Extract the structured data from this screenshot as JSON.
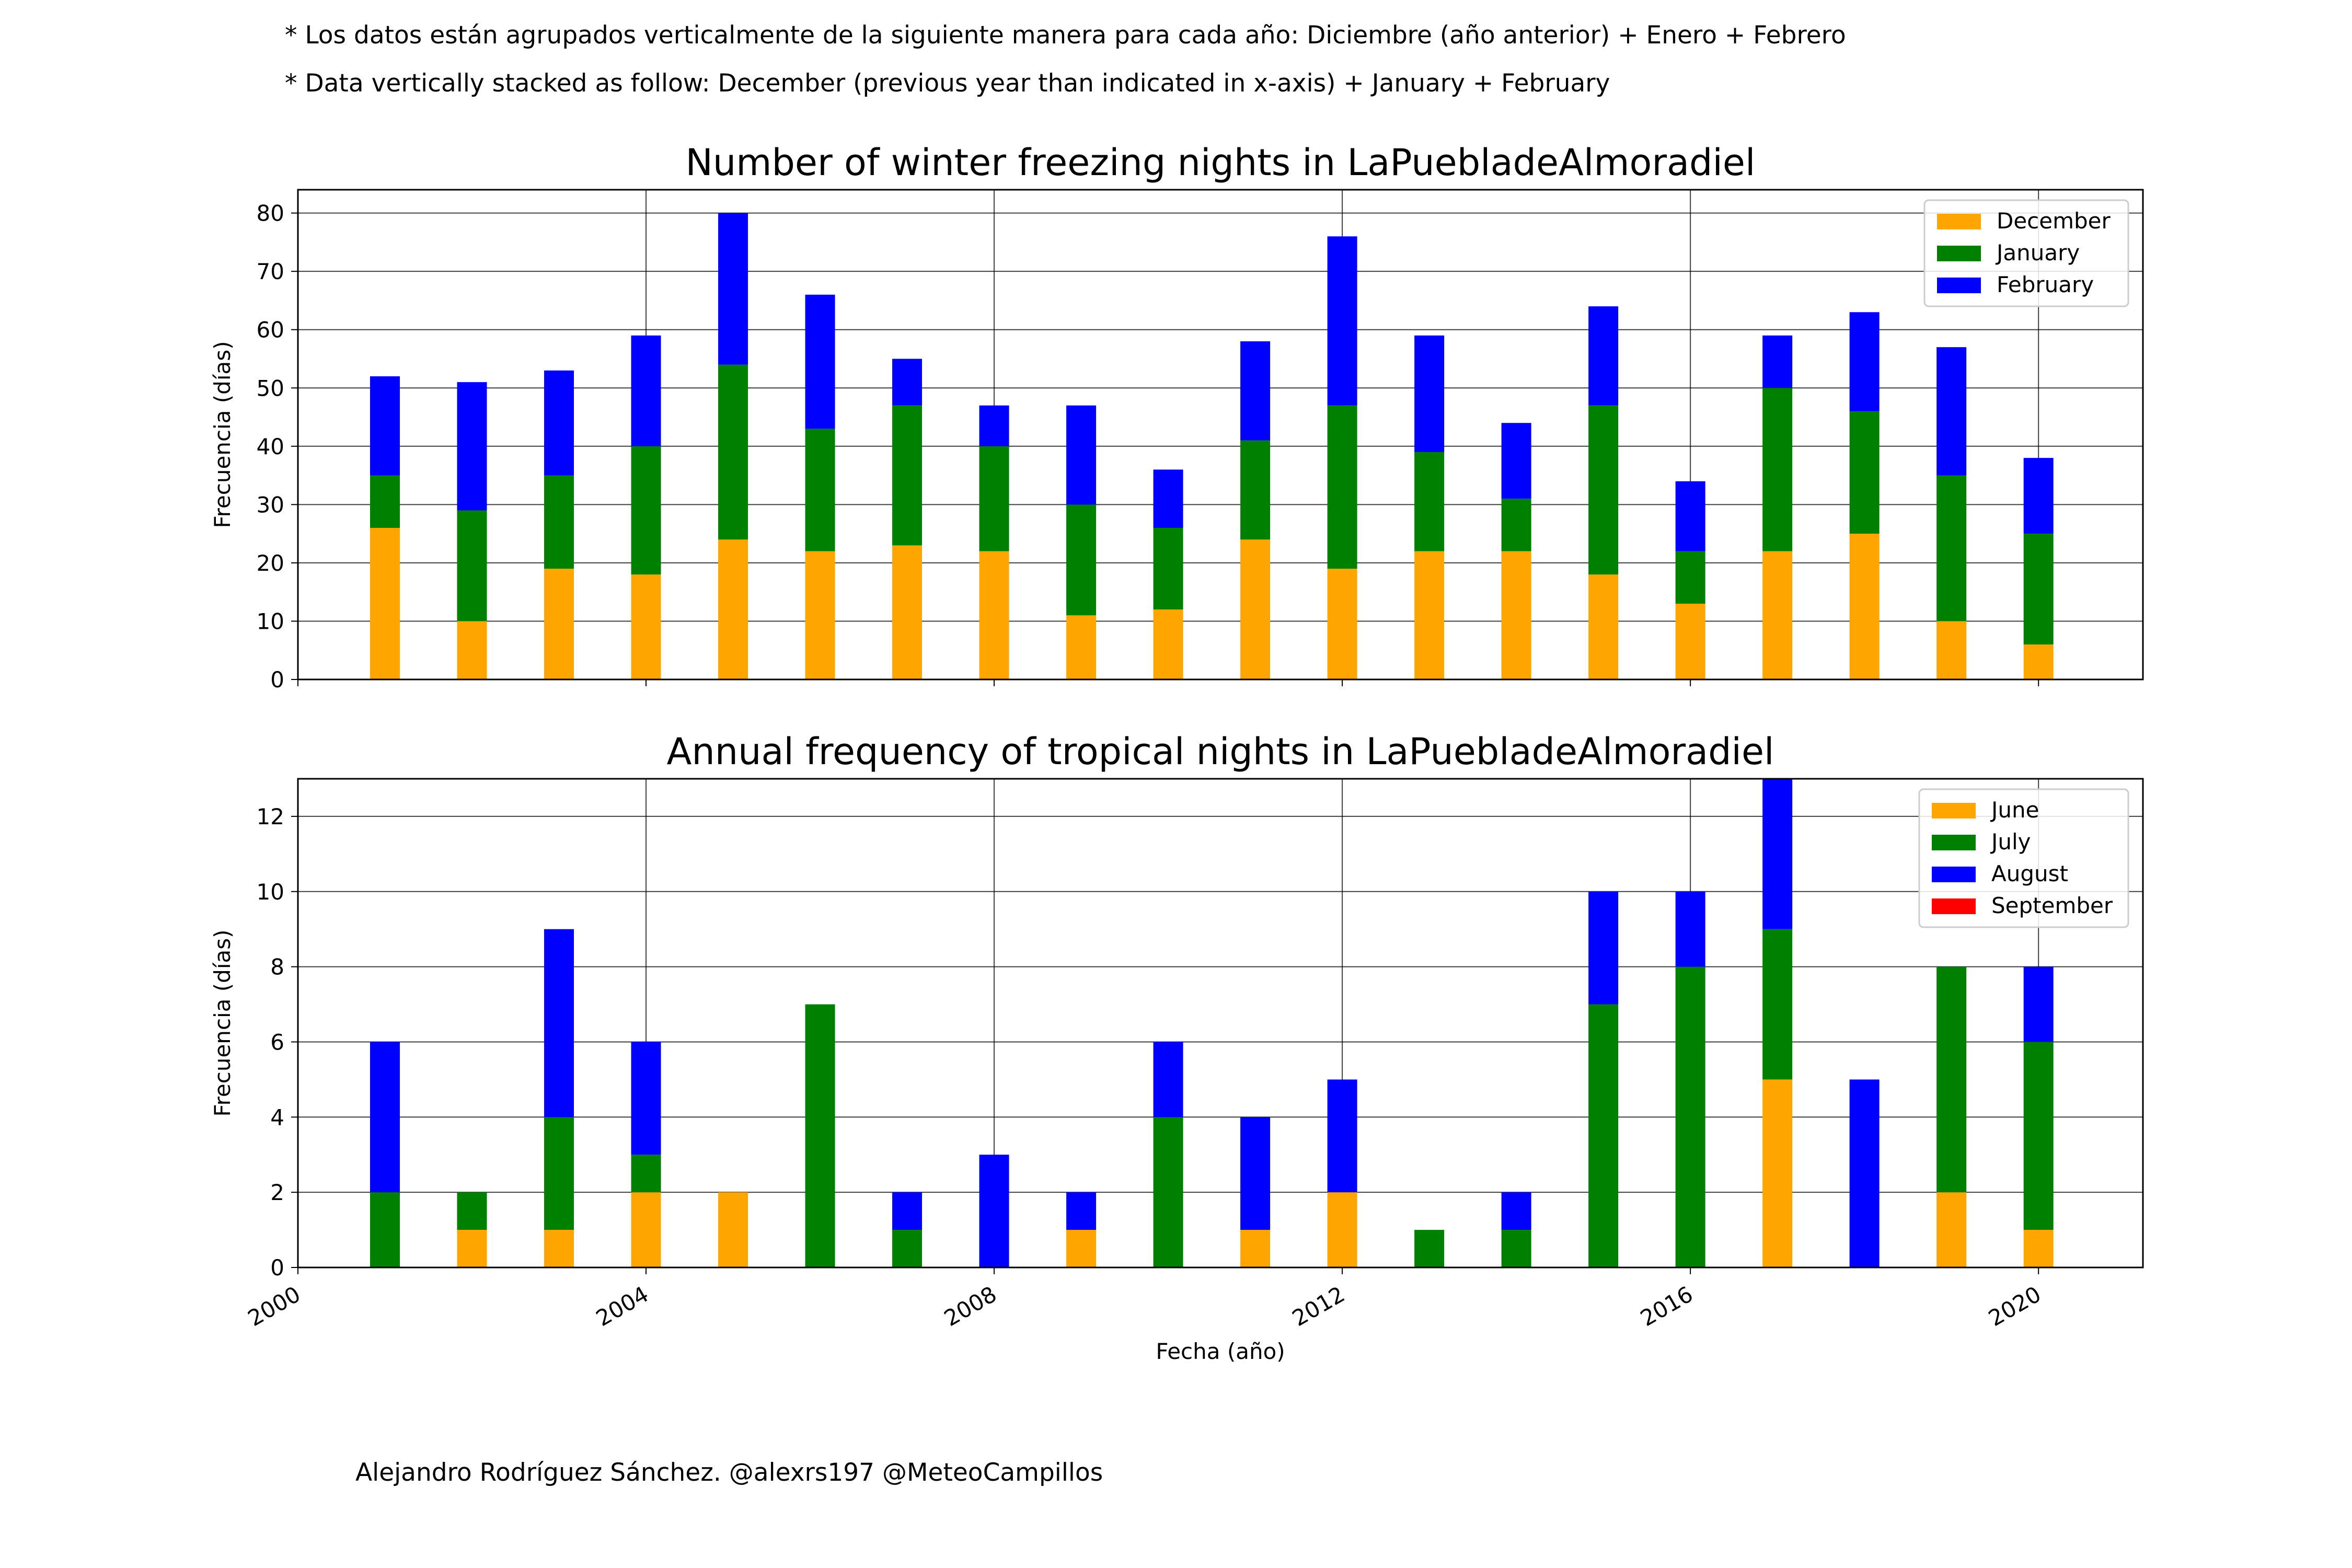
{
  "notes": {
    "spanish": "* Los datos están agrupados verticalmente de la siguiente manera para cada año: Diciembre (año anterior) + Enero  + Febrero",
    "english": "* Data vertically stacked as follow: December (previous year than indicated in x-axis) + January  + February"
  },
  "credit": "Alejandro Rodríguez Sánchez. @alexrs197 @MeteoCampillos",
  "chart_data": [
    {
      "type": "bar",
      "stacked": true,
      "title": "Number of winter freezing nights in LaPuebladeAlmoradiel",
      "xlabel": "",
      "ylabel": "Frecuencia (días)",
      "x": [
        2001,
        2002,
        2003,
        2004,
        2005,
        2006,
        2007,
        2008,
        2009,
        2010,
        2011,
        2012,
        2013,
        2014,
        2015,
        2016,
        2017,
        2018,
        2019,
        2020
      ],
      "xlim": [
        2000,
        2021.2
      ],
      "ylim": [
        0,
        84
      ],
      "yticks": [
        0,
        10,
        20,
        30,
        40,
        50,
        60,
        70,
        80
      ],
      "xticks": [
        2000,
        2004,
        2008,
        2012,
        2016,
        2020
      ],
      "grid": true,
      "legend_position": "top-right",
      "series": [
        {
          "name": "December",
          "color": "#ffa500",
          "values": [
            26,
            10,
            19,
            18,
            24,
            22,
            23,
            22,
            11,
            12,
            24,
            19,
            22,
            22,
            18,
            13,
            22,
            25,
            10,
            6
          ]
        },
        {
          "name": "January",
          "color": "#008000",
          "values": [
            9,
            19,
            16,
            22,
            30,
            21,
            24,
            18,
            19,
            14,
            17,
            28,
            17,
            9,
            29,
            9,
            28,
            21,
            25,
            19
          ]
        },
        {
          "name": "February",
          "color": "#0000ff",
          "values": [
            17,
            22,
            18,
            19,
            26,
            23,
            8,
            7,
            17,
            10,
            17,
            29,
            20,
            13,
            17,
            12,
            9,
            17,
            22,
            13
          ]
        }
      ]
    },
    {
      "type": "bar",
      "stacked": true,
      "title": "Annual frequency of tropical nights in LaPuebladeAlmoradiel",
      "xlabel": "Fecha (año)",
      "ylabel": "Frecuencia (días)",
      "x": [
        2001,
        2002,
        2003,
        2004,
        2005,
        2006,
        2007,
        2008,
        2009,
        2010,
        2011,
        2012,
        2013,
        2014,
        2015,
        2016,
        2017,
        2018,
        2019,
        2020
      ],
      "xlim": [
        2000,
        2021.2
      ],
      "ylim": [
        0,
        13
      ],
      "yticks": [
        0,
        2,
        4,
        6,
        8,
        10,
        12
      ],
      "xticks": [
        2000,
        2004,
        2008,
        2012,
        2016,
        2020
      ],
      "grid": true,
      "legend_position": "top-right",
      "series": [
        {
          "name": "June",
          "color": "#ffa500",
          "values": [
            0,
            1,
            1,
            2,
            2,
            0,
            0,
            0,
            1,
            0,
            1,
            2,
            0,
            0,
            0,
            0,
            5,
            0,
            2,
            1
          ]
        },
        {
          "name": "July",
          "color": "#008000",
          "values": [
            2,
            1,
            3,
            1,
            0,
            7,
            1,
            0,
            0,
            4,
            0,
            0,
            1,
            1,
            7,
            8,
            4,
            0,
            6,
            5
          ]
        },
        {
          "name": "August",
          "color": "#0000ff",
          "values": [
            4,
            0,
            5,
            3,
            0,
            0,
            1,
            3,
            1,
            2,
            3,
            3,
            0,
            1,
            3,
            2,
            4,
            5,
            0,
            2
          ]
        },
        {
          "name": "September",
          "color": "#ff0000",
          "values": [
            0,
            0,
            0,
            0,
            0,
            0,
            0,
            0,
            0,
            0,
            0,
            0,
            0,
            0,
            0,
            0,
            0,
            0,
            0,
            0
          ]
        }
      ]
    }
  ]
}
